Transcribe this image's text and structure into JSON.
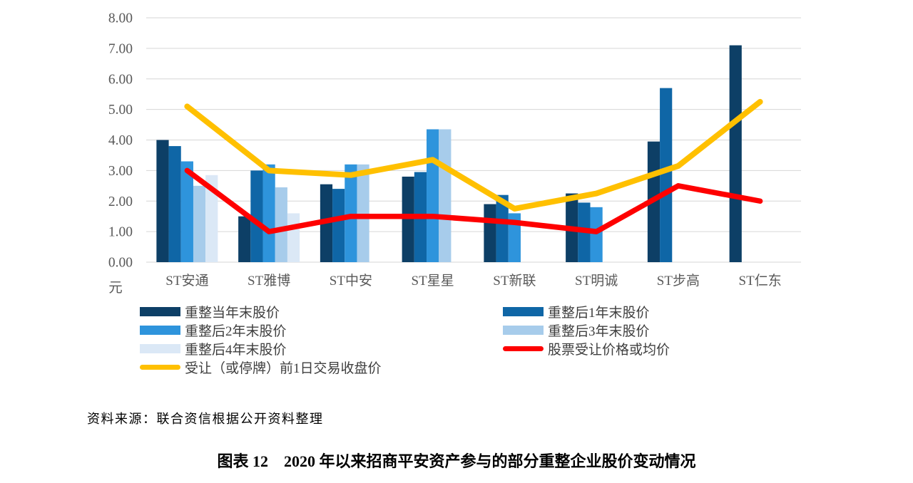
{
  "chart_data": {
    "type": "bar",
    "subtype": "grouped-bars-with-lines",
    "title": "图表 12　2020 年以来招商平安资产参与的部分重整企业股价变动情况",
    "unit_label": "元",
    "categories": [
      "ST安通",
      "ST雅博",
      "ST中安",
      "ST星星",
      "ST新联",
      "ST明诚",
      "ST步高",
      "ST仁东"
    ],
    "bar_series": [
      {
        "name": "重整当年末股价",
        "color": "#0d3f66",
        "values": [
          4.0,
          1.5,
          2.55,
          2.8,
          1.9,
          2.25,
          3.95,
          7.1
        ]
      },
      {
        "name": "重整后1年末股价",
        "color": "#0f66a6",
        "values": [
          3.8,
          3.0,
          2.4,
          2.95,
          2.2,
          1.95,
          5.7,
          null
        ]
      },
      {
        "name": "重整后2年末股价",
        "color": "#2e94dc",
        "values": [
          3.3,
          3.2,
          3.2,
          4.35,
          1.6,
          1.8,
          null,
          null
        ]
      },
      {
        "name": "重整后3年末股价",
        "color": "#a7cceb",
        "values": [
          2.5,
          2.45,
          3.2,
          4.35,
          null,
          null,
          null,
          null
        ]
      },
      {
        "name": "重整后4年末股价",
        "color": "#dbe8f6",
        "values": [
          2.85,
          1.6,
          null,
          null,
          null,
          null,
          null,
          null
        ]
      }
    ],
    "line_series": [
      {
        "name": "股票受让价格或均价",
        "color": "#fe0000",
        "values": [
          3.0,
          1.0,
          1.5,
          1.5,
          1.3,
          1.0,
          2.5,
          2.0
        ]
      },
      {
        "name": "受让（或停牌）前1日交易收盘价",
        "color": "#ffc000",
        "values": [
          5.1,
          3.0,
          2.85,
          3.35,
          1.75,
          2.25,
          3.15,
          5.25
        ]
      }
    ],
    "ylim": [
      0,
      8
    ],
    "ytick_step": 1,
    "ytick_labels": [
      "0.00",
      "1.00",
      "2.00",
      "3.00",
      "4.00",
      "5.00",
      "6.00",
      "7.00",
      "8.00"
    ],
    "grid": true,
    "gridline_color": "#d6d6d6",
    "axis_text_color": "#595959",
    "legend_position": "bottom-left-two-columns"
  },
  "source_note": "资料来源：联合资信根据公开资料整理",
  "caption": "图表 12　2020 年以来招商平安资产参与的部分重整企业股价变动情况"
}
